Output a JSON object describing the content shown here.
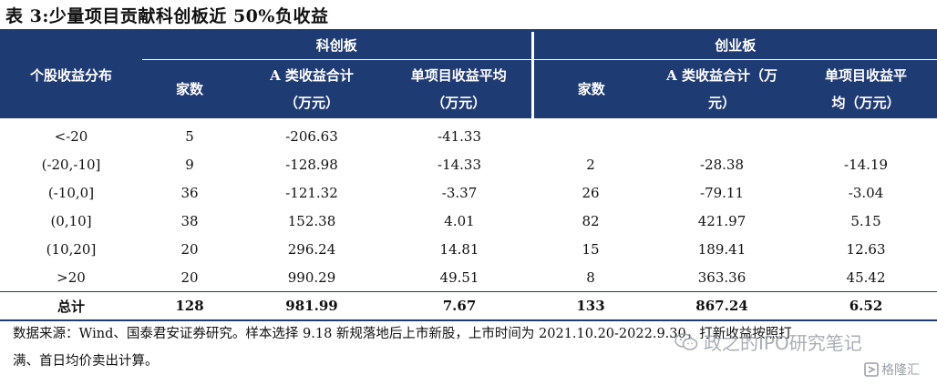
{
  "title": "表 3:少量项目贡献科创板近 50%负收益",
  "header": {
    "row_label": "个股收益分布",
    "groups": [
      "科创板",
      "创业板"
    ],
    "cols": {
      "count": "家数",
      "total_line1": "A 类收益合计",
      "total_line2": "（万元）",
      "avg_line1": "单项目收益平均",
      "avg_line2": "（万元）",
      "cyb_total_line1": "A 类收益合计（万",
      "cyb_total_line2": "元）",
      "cyb_avg_line1": "单项目收益平",
      "cyb_avg_line2": "均（万元）"
    }
  },
  "rows": [
    {
      "range": "<-20",
      "kcb_count": "5",
      "kcb_total": "-206.63",
      "kcb_avg": "-41.33",
      "cyb_count": "",
      "cyb_total": "",
      "cyb_avg": ""
    },
    {
      "range": "(-20,-10]",
      "kcb_count": "9",
      "kcb_total": "-128.98",
      "kcb_avg": "-14.33",
      "cyb_count": "2",
      "cyb_total": "-28.38",
      "cyb_avg": "-14.19"
    },
    {
      "range": "(-10,0]",
      "kcb_count": "36",
      "kcb_total": "-121.32",
      "kcb_avg": "-3.37",
      "cyb_count": "26",
      "cyb_total": "-79.11",
      "cyb_avg": "-3.04"
    },
    {
      "range": "(0,10]",
      "kcb_count": "38",
      "kcb_total": "152.38",
      "kcb_avg": "4.01",
      "cyb_count": "82",
      "cyb_total": "421.97",
      "cyb_avg": "5.15"
    },
    {
      "range": "(10,20]",
      "kcb_count": "20",
      "kcb_total": "296.24",
      "kcb_avg": "14.81",
      "cyb_count": "15",
      "cyb_total": "189.41",
      "cyb_avg": "12.63"
    },
    {
      "range": ">20",
      "kcb_count": "20",
      "kcb_total": "990.29",
      "kcb_avg": "49.51",
      "cyb_count": "8",
      "cyb_total": "363.36",
      "cyb_avg": "45.42"
    }
  ],
  "total": {
    "range": "总计",
    "kcb_count": "128",
    "kcb_total": "981.99",
    "kcb_avg": "7.67",
    "cyb_count": "133",
    "cyb_total": "867.24",
    "cyb_avg": "6.52"
  },
  "source_line1": "数据来源：Wind、国泰君安证券研究。样本选择 9.18 新规落地后上市新股，上市时间为 2021.10.20-2022.9.30，打新收益按照打",
  "source_line2": "满、首日均价卖出计算。",
  "watermark_text": "政之的IPO研究笔记",
  "logo_text": "格隆汇"
}
